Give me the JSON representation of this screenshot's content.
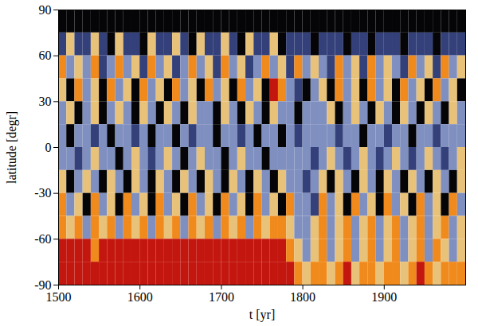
{
  "chart_data": {
    "type": "heatmap",
    "xlabel": "t [yr]",
    "ylabel": "latitude [degr]",
    "xlim": [
      1500,
      2000
    ],
    "ylim": [
      -90,
      90
    ],
    "xticks": [
      1500,
      1600,
      1700,
      1800,
      1900
    ],
    "yticks": [
      -90,
      -60,
      -30,
      0,
      30,
      60,
      90
    ],
    "cells": {
      "x_edges": [
        1500,
        1510,
        1520,
        1530,
        1540,
        1550,
        1560,
        1570,
        1580,
        1590,
        1600,
        1610,
        1620,
        1630,
        1640,
        1650,
        1660,
        1670,
        1680,
        1690,
        1700,
        1710,
        1720,
        1730,
        1740,
        1750,
        1760,
        1770,
        1780,
        1790,
        1800,
        1810,
        1820,
        1830,
        1840,
        1850,
        1860,
        1870,
        1880,
        1890,
        1900,
        1910,
        1920,
        1930,
        1940,
        1950,
        1960,
        1970,
        1980,
        1990,
        2000
      ],
      "y_edges": [
        90,
        75,
        60,
        45,
        30,
        15,
        0,
        -15,
        -30,
        -45,
        -60,
        -75,
        -90
      ],
      "levels": [
        -2,
        -1,
        0,
        1,
        2,
        3
      ],
      "colors": [
        "#050508",
        "#34407a",
        "#7f8fbf",
        "#e9c27a",
        "#f08a1c",
        "#c3160e"
      ],
      "values": [
        [
          -2,
          -2,
          -2,
          -2,
          -2,
          -2,
          -2,
          -2,
          -2,
          -2,
          -2,
          -2,
          -2,
          -2,
          -2,
          -2,
          -2,
          -2,
          -2,
          -2,
          -2,
          -2,
          -2,
          -2,
          -2,
          -2,
          -2,
          -2,
          -2,
          -2,
          -2,
          -2,
          -2,
          -2,
          -2,
          -2,
          -2,
          -2,
          -2,
          -2,
          -2,
          -2,
          -2,
          -2,
          -2,
          -2,
          -2,
          -2,
          -2,
          -2
        ],
        [
          -1,
          1,
          -1,
          -1,
          1,
          -1,
          -2,
          1,
          -1,
          -1,
          -2,
          1,
          -1,
          -1,
          1,
          -1,
          -2,
          1,
          -1,
          -1,
          1,
          -1,
          -2,
          1,
          -1,
          -1,
          1,
          -2,
          -1,
          -1,
          -1,
          -2,
          -1,
          -1,
          -1,
          -2,
          -1,
          -1,
          -2,
          -1,
          -1,
          -1,
          -2,
          -1,
          -1,
          -1,
          -2,
          -1,
          -1,
          -1
        ],
        [
          2,
          0,
          1,
          0,
          2,
          -1,
          0,
          2,
          0,
          1,
          -1,
          2,
          0,
          1,
          -1,
          0,
          2,
          0,
          1,
          -1,
          2,
          0,
          1,
          -1,
          0,
          2,
          0,
          1,
          -1,
          2,
          0,
          1,
          0,
          -1,
          2,
          0,
          1,
          -1,
          2,
          0,
          1,
          0,
          -1,
          2,
          0,
          1,
          -1,
          2,
          0,
          1
        ],
        [
          1,
          -2,
          2,
          0,
          1,
          -2,
          2,
          0,
          1,
          -2,
          2,
          0,
          1,
          -2,
          2,
          0,
          1,
          -2,
          2,
          0,
          1,
          -2,
          2,
          0,
          1,
          -2,
          3,
          2,
          0,
          -1,
          -2,
          0,
          1,
          -2,
          2,
          0,
          1,
          -2,
          2,
          0,
          1,
          -2,
          2,
          0,
          1,
          -2,
          2,
          0,
          1,
          -2
        ],
        [
          0,
          1,
          -2,
          0,
          1,
          -2,
          0,
          1,
          0,
          -2,
          1,
          0,
          -2,
          1,
          0,
          -2,
          1,
          0,
          0,
          -2,
          1,
          0,
          -2,
          1,
          0,
          -2,
          1,
          0,
          0,
          -2,
          0,
          0,
          0,
          1,
          -2,
          0,
          1,
          0,
          -2,
          1,
          0,
          -2,
          1,
          0,
          -2,
          1,
          0,
          -2,
          1,
          0
        ],
        [
          0,
          -2,
          0,
          0,
          -1,
          0,
          -2,
          0,
          0,
          -1,
          0,
          -2,
          0,
          0,
          -2,
          0,
          -1,
          0,
          0,
          -2,
          0,
          0,
          -1,
          0,
          -2,
          0,
          0,
          -2,
          0,
          -1,
          0,
          0,
          0,
          0,
          -1,
          0,
          0,
          -2,
          0,
          0,
          -1,
          0,
          0,
          -2,
          0,
          0,
          -1,
          0,
          0,
          0
        ],
        [
          0,
          0,
          -1,
          0,
          1,
          0,
          0,
          -2,
          0,
          1,
          0,
          -1,
          0,
          1,
          0,
          -2,
          0,
          1,
          0,
          0,
          -2,
          0,
          1,
          0,
          0,
          -2,
          0,
          0,
          0,
          0,
          0,
          -1,
          0,
          1,
          0,
          -1,
          0,
          1,
          0,
          -1,
          0,
          1,
          0,
          -1,
          0,
          1,
          0,
          -1,
          0,
          1
        ],
        [
          1,
          -2,
          0,
          1,
          0,
          -2,
          1,
          0,
          -2,
          1,
          0,
          -2,
          1,
          0,
          -2,
          1,
          0,
          -2,
          1,
          0,
          -2,
          1,
          0,
          -2,
          1,
          0,
          -2,
          1,
          0,
          0,
          -1,
          0,
          1,
          -2,
          1,
          0,
          -2,
          1,
          0,
          -2,
          1,
          0,
          -2,
          1,
          0,
          -2,
          1,
          0,
          -2,
          1
        ],
        [
          2,
          0,
          1,
          -2,
          2,
          0,
          1,
          -2,
          2,
          0,
          1,
          -2,
          2,
          0,
          1,
          -2,
          2,
          0,
          1,
          -2,
          2,
          0,
          1,
          -2,
          2,
          0,
          1,
          -2,
          2,
          0,
          0,
          -1,
          2,
          0,
          1,
          -2,
          2,
          0,
          1,
          -2,
          2,
          0,
          1,
          -2,
          2,
          0,
          1,
          -2,
          2,
          0
        ],
        [
          2,
          1,
          2,
          0,
          2,
          1,
          2,
          0,
          2,
          1,
          2,
          0,
          2,
          1,
          2,
          0,
          2,
          1,
          2,
          0,
          2,
          1,
          2,
          0,
          2,
          1,
          2,
          2,
          1,
          0,
          0,
          1,
          2,
          0,
          1,
          2,
          0,
          1,
          2,
          0,
          1,
          2,
          0,
          1,
          2,
          0,
          1,
          2,
          0,
          1
        ],
        [
          3,
          3,
          3,
          3,
          2,
          3,
          3,
          3,
          3,
          3,
          3,
          3,
          3,
          3,
          3,
          3,
          3,
          3,
          3,
          3,
          3,
          3,
          3,
          3,
          3,
          3,
          3,
          3,
          2,
          1,
          0,
          1,
          2,
          0,
          1,
          2,
          0,
          1,
          2,
          0,
          1,
          2,
          0,
          1,
          2,
          0,
          2,
          1,
          0,
          1
        ],
        [
          3,
          3,
          3,
          3,
          3,
          3,
          3,
          3,
          3,
          3,
          3,
          3,
          3,
          3,
          3,
          3,
          3,
          3,
          3,
          3,
          3,
          3,
          3,
          3,
          3,
          3,
          3,
          3,
          3,
          2,
          1,
          2,
          2,
          1,
          2,
          3,
          1,
          2,
          2,
          1,
          2,
          2,
          1,
          2,
          3,
          2,
          1,
          2,
          2,
          2
        ]
      ]
    }
  }
}
